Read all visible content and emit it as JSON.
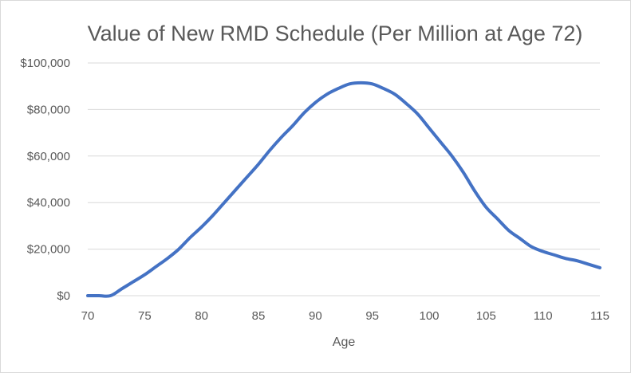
{
  "chart_data": {
    "type": "line",
    "title": "Value of New RMD Schedule (Per Million at Age 72)",
    "xlabel": "Age",
    "ylabel": "",
    "xlim": [
      70,
      115
    ],
    "ylim": [
      0,
      100000
    ],
    "x_ticks": [
      "70",
      "75",
      "80",
      "85",
      "90",
      "95",
      "100",
      "105",
      "110",
      "115"
    ],
    "y_ticks": [
      "$0",
      "$20,000",
      "$40,000",
      "$60,000",
      "$80,000",
      "$100,000"
    ],
    "grid": true,
    "legend": "none",
    "series": [
      {
        "color": "#4472C4",
        "x": [
          70,
          71,
          72,
          73,
          74,
          75,
          76,
          77,
          78,
          79,
          80,
          81,
          82,
          83,
          84,
          85,
          86,
          87,
          88,
          89,
          90,
          91,
          92,
          93,
          94,
          95,
          96,
          97,
          98,
          99,
          100,
          101,
          102,
          103,
          104,
          105,
          106,
          107,
          108,
          109,
          110,
          111,
          112,
          113,
          114,
          115
        ],
        "values": [
          0,
          0,
          0,
          3000,
          6000,
          9000,
          12500,
          16000,
          20000,
          25000,
          29500,
          34500,
          40000,
          45500,
          51000,
          56500,
          62500,
          68000,
          73000,
          78500,
          83000,
          86500,
          89000,
          91000,
          91500,
          91000,
          89000,
          86500,
          82500,
          78000,
          72000,
          66000,
          60000,
          53000,
          45000,
          38000,
          33000,
          28000,
          24500,
          21000,
          19000,
          17500,
          16000,
          15000,
          13500,
          12000
        ]
      }
    ]
  },
  "colors": {
    "line": "#4472C4",
    "grid": "#d9d9d9",
    "text": "#595959"
  }
}
